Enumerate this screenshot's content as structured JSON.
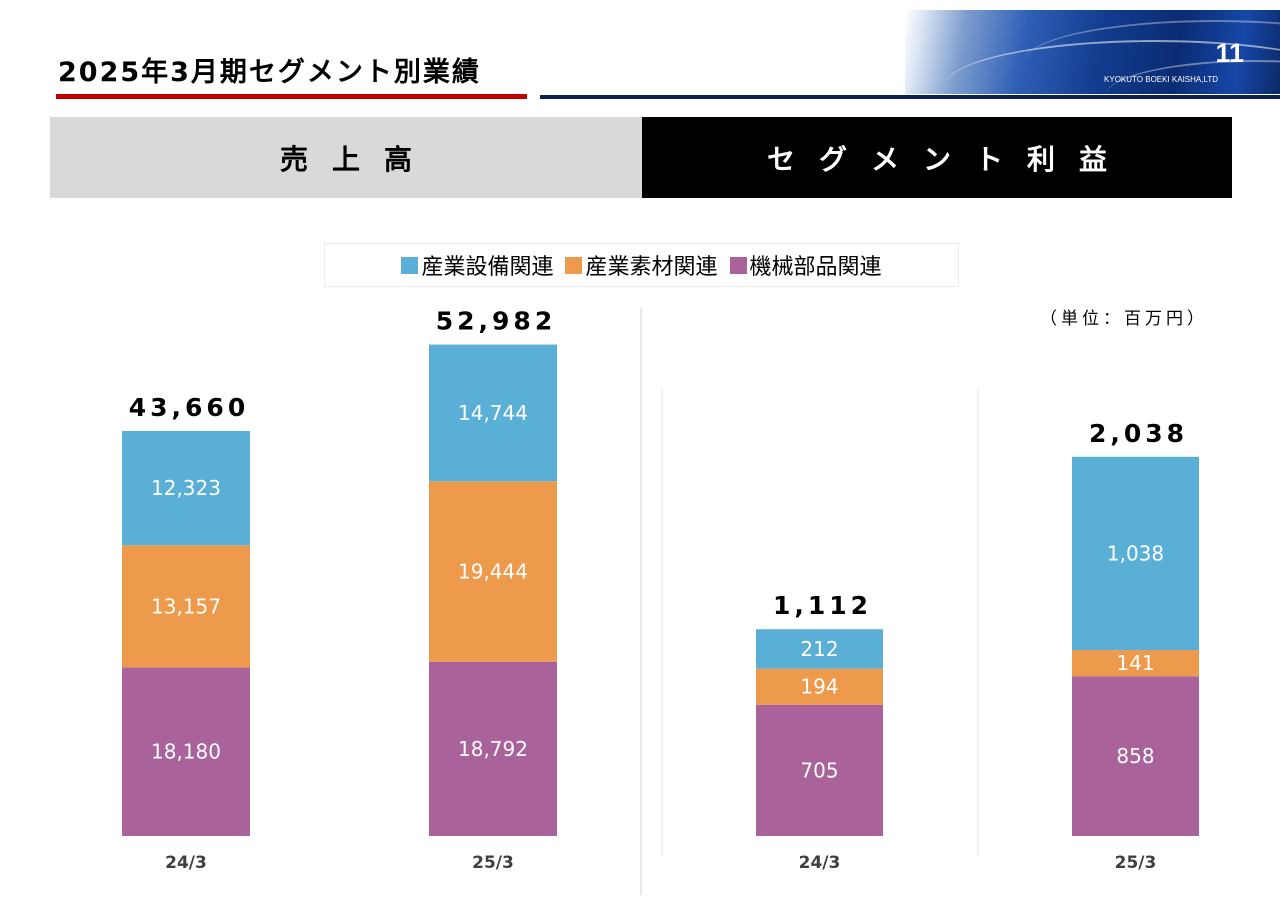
{
  "header": {
    "title": "2025年3月期セグメント別業績",
    "page_number": "11",
    "company": "KYOKUTO BOEKI KAISHA,LTD"
  },
  "section_headers": {
    "left": "売上高",
    "right": "セグメント利益"
  },
  "unit": "（単位：百万円）",
  "colors": {
    "industrial_equipment": "#5aafd6",
    "industrial_materials": "#ee9a4d",
    "machinery_parts": "#a9629a",
    "title_underline": "#c00000",
    "right_header_bg": "#000000",
    "left_header_bg": "#d9d9d9"
  },
  "chart_data": [
    {
      "type": "bar",
      "stacked": true,
      "categories": [
        "24/3",
        "25/3"
      ],
      "series": [
        {
          "name": "機械部品関連",
          "values": [
            18180,
            18792
          ]
        },
        {
          "name": "産業素材関連",
          "values": [
            13157,
            19444
          ]
        },
        {
          "name": "産業設備関連",
          "values": [
            12323,
            14744
          ]
        }
      ],
      "value_labels": [
        [
          "18,180",
          "18,792"
        ],
        [
          "13,157",
          "19,444"
        ],
        [
          "12,323",
          "14,744"
        ]
      ],
      "totals": [
        43660,
        52982
      ],
      "total_labels": [
        "43,660",
        "52,982"
      ],
      "ylim": [
        0,
        55000
      ]
    },
    {
      "type": "bar",
      "stacked": true,
      "categories": [
        "24/3",
        "25/3"
      ],
      "series": [
        {
          "name": "機械部品関連",
          "values": [
            705,
            858
          ]
        },
        {
          "name": "産業素材関連",
          "values": [
            194,
            141
          ]
        },
        {
          "name": "産業設備関連",
          "values": [
            212,
            1038
          ]
        }
      ],
      "value_labels": [
        [
          "705",
          "858"
        ],
        [
          "194",
          "141"
        ],
        [
          "212",
          "1,038"
        ]
      ],
      "totals": [
        1112,
        2038
      ],
      "total_labels": [
        "1,112",
        "2,038"
      ],
      "ylim": [
        0,
        2400
      ]
    }
  ],
  "legend": [
    {
      "label": "産業設備関連",
      "color": "#5aafd6"
    },
    {
      "label": "産業素材関連",
      "color": "#ee9a4d"
    },
    {
      "label": "機械部品関連",
      "color": "#a9629a"
    }
  ]
}
